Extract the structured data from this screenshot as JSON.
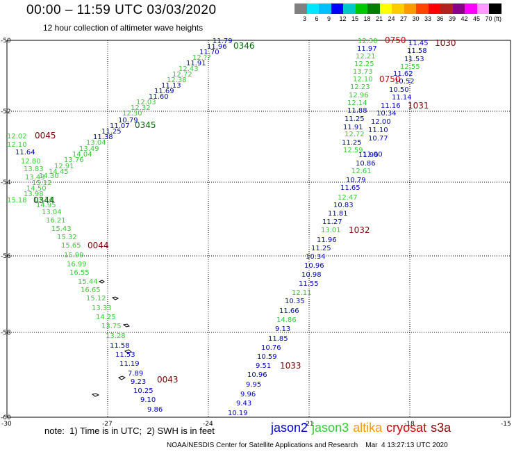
{
  "header": {
    "title": "00:00 – 11:59 UTC 03/03/2020",
    "subtitle": "12 hour collection of altimeter wave heights"
  },
  "colorbar": {
    "unit": "(ft)",
    "labels": [
      "3",
      "6",
      "9",
      "12",
      "15",
      "18",
      "21",
      "24",
      "27",
      "30",
      "33",
      "36",
      "39",
      "42",
      "45",
      "70"
    ],
    "colors": [
      "#808080",
      "#00e5ff",
      "#00bfff",
      "#0000ff",
      "#00c8c8",
      "#00c800",
      "#008000",
      "#ffff00",
      "#ffcc00",
      "#ff9900",
      "#ff4500",
      "#ff0000",
      "#b22222",
      "#8b008b",
      "#ff00ff",
      "#ff99ff",
      "#000000"
    ]
  },
  "axes": {
    "lon_labels": [
      "-30",
      "-27",
      "-24",
      "-21",
      "-18",
      "-15"
    ],
    "lat_labels": [
      "-50",
      "-52",
      "-54",
      "-56",
      "-58",
      "-60"
    ]
  },
  "colors": {
    "jason2": "#0000cc",
    "jason3": "#33cc33",
    "altika": "#ff9900",
    "cryosat": "#cc0000",
    "s3a": "#880000",
    "time_dark": "#800000",
    "time_green": "#006600"
  },
  "tracks": [
    {
      "time_labels": [
        {
          "text": "0346",
          "color": "time_green"
        },
        {
          "text": "0345",
          "color": "time_green"
        },
        {
          "text": "0045",
          "color": "time_dark"
        },
        {
          "text": "0344",
          "color": "time_green"
        },
        {
          "text": "0044",
          "color": "time_dark"
        },
        {
          "text": "0043",
          "color": "time_dark"
        }
      ],
      "values": [
        {
          "v": "11.79",
          "c": "jason2"
        },
        {
          "v": "11.96",
          "c": "jason2"
        },
        {
          "v": "11.70",
          "c": "jason2"
        },
        {
          "v": "12.??",
          "c": "jason3"
        },
        {
          "v": "11.91",
          "c": "jason2"
        },
        {
          "v": "12.43",
          "c": "jason3"
        },
        {
          "v": "12.72",
          "c": "jason3"
        },
        {
          "v": "12.38",
          "c": "jason3"
        },
        {
          "v": "11.13",
          "c": "jason2"
        },
        {
          "v": "11.69",
          "c": "jason2"
        },
        {
          "v": "11.60",
          "c": "jason2"
        },
        {
          "v": "12.03",
          "c": "jason3"
        },
        {
          "v": "12.32",
          "c": "jason3"
        },
        {
          "v": "12.30",
          "c": "jason3"
        },
        {
          "v": "10.79",
          "c": "jason2"
        },
        {
          "v": "11.07",
          "c": "jason2"
        },
        {
          "v": "11.25",
          "c": "jason2"
        },
        {
          "v": "11.38",
          "c": "jason2"
        },
        {
          "v": "12.02",
          "c": "jason3"
        },
        {
          "v": "12.10",
          "c": "jason3"
        },
        {
          "v": "13.04",
          "c": "jason3"
        },
        {
          "v": "11.64",
          "c": "jason2"
        },
        {
          "v": "13.49",
          "c": "jason3"
        },
        {
          "v": "14.04",
          "c": "jason3"
        },
        {
          "v": "12.80",
          "c": "jason3"
        },
        {
          "v": "13.76",
          "c": "jason3"
        },
        {
          "v": "12.91",
          "c": "jason3"
        },
        {
          "v": "13.83",
          "c": "jason3"
        },
        {
          "v": "14.45",
          "c": "jason3"
        },
        {
          "v": "14.30",
          "c": "jason3"
        },
        {
          "v": "13.43",
          "c": "jason3"
        },
        {
          "v": "15.12",
          "c": "jason3"
        },
        {
          "v": "14.50",
          "c": "jason3"
        },
        {
          "v": "13.98",
          "c": "jason3"
        },
        {
          "v": "13.24",
          "c": "jason3"
        },
        {
          "v": "15.18",
          "c": "jason3"
        },
        {
          "v": "14.95",
          "c": "jason3"
        },
        {
          "v": "13.04",
          "c": "jason3"
        },
        {
          "v": "16.21",
          "c": "jason3"
        },
        {
          "v": "15.43",
          "c": "jason3"
        },
        {
          "v": "15.32",
          "c": "jason3"
        },
        {
          "v": "15.65",
          "c": "jason3"
        },
        {
          "v": "15.99",
          "c": "jason3"
        },
        {
          "v": "16.99",
          "c": "jason3"
        },
        {
          "v": "16.55",
          "c": "jason3"
        },
        {
          "v": "15.44",
          "c": "jason3"
        },
        {
          "v": "16.65",
          "c": "jason3"
        },
        {
          "v": "15.12",
          "c": "jason3"
        },
        {
          "v": "13.33",
          "c": "jason3"
        },
        {
          "v": "14.25",
          "c": "jason3"
        },
        {
          "v": "13.75",
          "c": "jason3"
        },
        {
          "v": "13.28",
          "c": "jason3"
        },
        {
          "v": "11.58",
          "c": "jason2"
        },
        {
          "v": "11.53",
          "c": "jason2"
        },
        {
          "v": "11.19",
          "c": "jason2"
        },
        {
          "v": "7.89",
          "c": "jason2"
        },
        {
          "v": "9.23",
          "c": "jason2"
        },
        {
          "v": "10.25",
          "c": "jason2"
        },
        {
          "v": "9.10",
          "c": "jason2"
        },
        {
          "v": "9.86",
          "c": "jason2"
        }
      ]
    },
    {
      "time_labels": [
        {
          "text": "0750",
          "color": "cryosat"
        },
        {
          "text": "1030",
          "color": "time_dark"
        },
        {
          "text": "0750",
          "color": "cryosat"
        },
        {
          "text": "1031",
          "color": "time_dark"
        },
        {
          "text": "1032",
          "color": "time_dark"
        },
        {
          "text": "1033",
          "color": "time_dark"
        }
      ],
      "values": [
        {
          "v": "12.30",
          "c": "jason3"
        },
        {
          "v": "11.45",
          "c": "jason2"
        },
        {
          "v": "11.97",
          "c": "jason2"
        },
        {
          "v": "11.58",
          "c": "jason2"
        },
        {
          "v": "12.21",
          "c": "jason3"
        },
        {
          "v": "11.53",
          "c": "jason2"
        },
        {
          "v": "12.25",
          "c": "jason3"
        },
        {
          "v": "12.55",
          "c": "jason3"
        },
        {
          "v": "13.73",
          "c": "jason3"
        },
        {
          "v": "11.62",
          "c": "jason2"
        },
        {
          "v": "12.10",
          "c": "jason3"
        },
        {
          "v": "10.52",
          "c": "jason2"
        },
        {
          "v": "12.23",
          "c": "jason3"
        },
        {
          "v": "10.50",
          "c": "jason2"
        },
        {
          "v": "12.96",
          "c": "jason3"
        },
        {
          "v": "11.14",
          "c": "jason2"
        },
        {
          "v": "12.14",
          "c": "jason3"
        },
        {
          "v": "11.16",
          "c": "jason2"
        },
        {
          "v": "11.88",
          "c": "jason2"
        },
        {
          "v": "10.34",
          "c": "jason2"
        },
        {
          "v": "11.25",
          "c": "jason2"
        },
        {
          "v": "12.00",
          "c": "jason2"
        },
        {
          "v": "11.91",
          "c": "jason2"
        },
        {
          "v": "11.10",
          "c": "jason2"
        },
        {
          "v": "12.72",
          "c": "jason3"
        },
        {
          "v": "10.77",
          "c": "jason2"
        },
        {
          "v": "11.25",
          "c": "jason2"
        },
        {
          "v": "11.90",
          "c": "jason2"
        },
        {
          "v": "12.59",
          "c": "jason3"
        },
        {
          "v": "11.90",
          "c": "jason2"
        },
        {
          "v": "10.86",
          "c": "jason2"
        },
        {
          "v": "12.61",
          "c": "jason3"
        },
        {
          "v": "10.79",
          "c": "jason2"
        },
        {
          "v": "11.65",
          "c": "jason2"
        },
        {
          "v": "12.47",
          "c": "jason3"
        },
        {
          "v": "10.83",
          "c": "jason2"
        },
        {
          "v": "11.81",
          "c": "jason2"
        },
        {
          "v": "11.27",
          "c": "jason2"
        },
        {
          "v": "13.01",
          "c": "jason3"
        },
        {
          "v": "11.96",
          "c": "jason2"
        },
        {
          "v": "11.25",
          "c": "jason2"
        },
        {
          "v": "10.34",
          "c": "jason2"
        },
        {
          "v": "10.96",
          "c": "jason2"
        },
        {
          "v": "10.98",
          "c": "jason2"
        },
        {
          "v": "11.55",
          "c": "jason2"
        },
        {
          "v": "12.11",
          "c": "jason3"
        },
        {
          "v": "10.35",
          "c": "jason2"
        },
        {
          "v": "11.66",
          "c": "jason2"
        },
        {
          "v": "14.86",
          "c": "jason3"
        },
        {
          "v": "9.13",
          "c": "jason2"
        },
        {
          "v": "11.85",
          "c": "jason2"
        },
        {
          "v": "10.76",
          "c": "jason2"
        },
        {
          "v": "10.59",
          "c": "jason2"
        },
        {
          "v": "9.51",
          "c": "jason2"
        },
        {
          "v": "10.96",
          "c": "jason2"
        },
        {
          "v": "9.95",
          "c": "jason2"
        },
        {
          "v": "9.96",
          "c": "jason2"
        },
        {
          "v": "9.43",
          "c": "jason2"
        },
        {
          "v": "10.19",
          "c": "jason2"
        }
      ]
    }
  ],
  "footer": {
    "note": "note:  1) Time is in UTC;  2) SWH is in feet",
    "legend": [
      {
        "label": "jason2",
        "color": "jason2"
      },
      {
        "label": "jason3",
        "color": "jason3"
      },
      {
        "label": "altika",
        "color": "altika"
      },
      {
        "label": "cryosat",
        "color": "cryosat"
      },
      {
        "label": "s3a",
        "color": "s3a"
      }
    ],
    "credit": "NOAA/NESDIS Center for Satellite Applications and Research    Mar  4 13:27:13 UTC 2020"
  }
}
